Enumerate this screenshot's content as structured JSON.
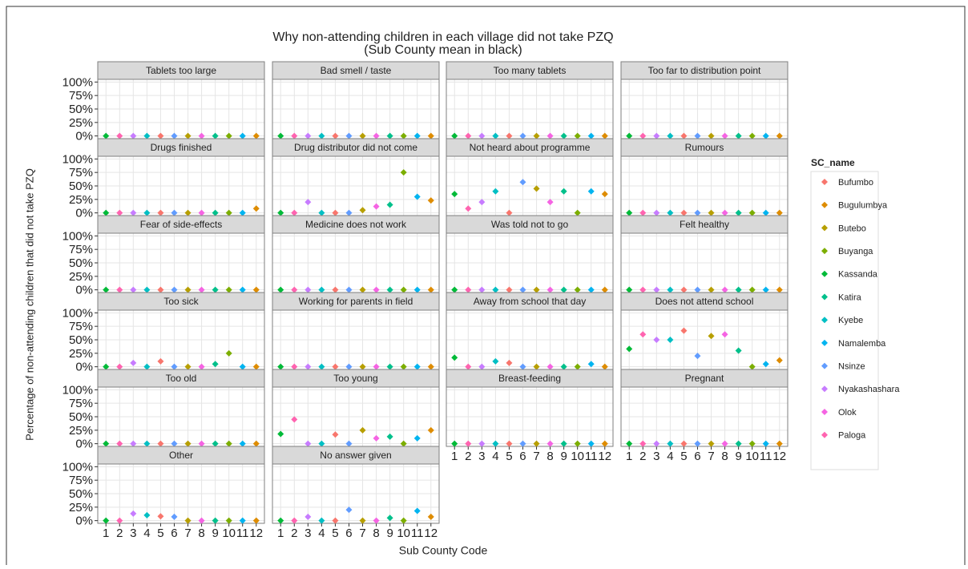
{
  "chart_data": {
    "type": "scatter",
    "title": "Why non-attending children in each village did not take PZQ",
    "subtitle": "(Sub County mean in black)",
    "x_label": "Sub County Code",
    "y_label": "Percentage of non-attending children that did not take PZQ",
    "legend_title": "SC_name",
    "grid": true,
    "x": [
      1,
      2,
      3,
      4,
      5,
      6,
      7,
      8,
      9,
      10,
      11,
      12
    ],
    "xlim": [
      0.4,
      12.6
    ],
    "ylim": [
      -5,
      105
    ],
    "yticks": [
      {
        "value": 0,
        "label": "0%"
      },
      {
        "value": 25,
        "label": "25%"
      },
      {
        "value": 50,
        "label": "50%"
      },
      {
        "value": 75,
        "label": "75%"
      },
      {
        "value": 100,
        "label": "100%"
      }
    ],
    "series": [
      {
        "name": "Bufumbo",
        "color": "#f8766d",
        "x": 5
      },
      {
        "name": "Bugulumbya",
        "color": "#de8c00",
        "x": 12
      },
      {
        "name": "Butebo",
        "color": "#b79f00",
        "x": 7
      },
      {
        "name": "Buyanga",
        "color": "#7cae00",
        "x": 10
      },
      {
        "name": "Kassanda",
        "color": "#00ba38",
        "x": 1
      },
      {
        "name": "Katira",
        "color": "#00c08b",
        "x": 9
      },
      {
        "name": "Kyebe",
        "color": "#00bfc4",
        "x": 4
      },
      {
        "name": "Namalemba",
        "color": "#00b4f0",
        "x": 11
      },
      {
        "name": "Nsinze",
        "color": "#619cff",
        "x": 6
      },
      {
        "name": "Nyakashashara",
        "color": "#c77cff",
        "x": 3
      },
      {
        "name": "Olok",
        "color": "#f564e3",
        "x": 8
      },
      {
        "name": "Paloga",
        "color": "#ff64b0",
        "x": 2
      }
    ],
    "facets": [
      {
        "title": "Tablets too large",
        "values": [
          0,
          0,
          0,
          0,
          0,
          0,
          0,
          0,
          0,
          0,
          0,
          0
        ]
      },
      {
        "title": "Bad smell / taste",
        "values": [
          0,
          0,
          0,
          0,
          0,
          0,
          0,
          0,
          0,
          0,
          0,
          0
        ]
      },
      {
        "title": "Too many tablets",
        "values": [
          0,
          0,
          0,
          0,
          0,
          0,
          0,
          0,
          0,
          0,
          0,
          0
        ]
      },
      {
        "title": "Too far to distribution point",
        "values": [
          0,
          0,
          0,
          0,
          0,
          0,
          0,
          0,
          0,
          0,
          0,
          0
        ]
      },
      {
        "title": "Drugs finished",
        "values": [
          0,
          0,
          0,
          0,
          0,
          0,
          0,
          0,
          0,
          0,
          0,
          8
        ]
      },
      {
        "title": "Drug distributor did not come",
        "values": [
          0,
          0,
          20,
          0,
          0,
          0,
          5,
          12,
          15,
          75,
          30,
          23
        ]
      },
      {
        "title": "Not heard about programme",
        "values": [
          35,
          8,
          20,
          40,
          0,
          57,
          45,
          20,
          40,
          0,
          40,
          35
        ]
      },
      {
        "title": "Rumours",
        "values": [
          0,
          0,
          0,
          0,
          0,
          0,
          0,
          0,
          0,
          0,
          0,
          0
        ]
      },
      {
        "title": "Fear of side-effects",
        "values": [
          0,
          0,
          0,
          0,
          0,
          0,
          0,
          0,
          0,
          0,
          0,
          0
        ]
      },
      {
        "title": "Medicine does not work",
        "values": [
          0,
          0,
          0,
          0,
          0,
          0,
          0,
          0,
          0,
          0,
          0,
          0
        ]
      },
      {
        "title": "Was told not to go",
        "values": [
          0,
          0,
          0,
          0,
          0,
          0,
          0,
          0,
          0,
          0,
          0,
          0
        ]
      },
      {
        "title": "Felt healthy",
        "values": [
          0,
          0,
          0,
          0,
          0,
          0,
          0,
          0,
          0,
          0,
          0,
          0
        ]
      },
      {
        "title": "Too sick",
        "values": [
          0,
          0,
          7,
          0,
          10,
          0,
          0,
          0,
          5,
          25,
          0,
          0
        ]
      },
      {
        "title": "Working for parents in field",
        "values": [
          0,
          0,
          0,
          0,
          0,
          0,
          0,
          0,
          0,
          0,
          0,
          0
        ]
      },
      {
        "title": "Away from school that day",
        "values": [
          17,
          0,
          0,
          10,
          7,
          0,
          0,
          0,
          0,
          0,
          5,
          0
        ]
      },
      {
        "title": "Does not attend school",
        "values": [
          33,
          60,
          50,
          50,
          67,
          20,
          57,
          60,
          30,
          0,
          5,
          12
        ]
      },
      {
        "title": "Too old",
        "values": [
          0,
          0,
          0,
          0,
          0,
          0,
          0,
          0,
          0,
          0,
          0,
          0
        ]
      },
      {
        "title": "Too young",
        "values": [
          18,
          45,
          0,
          0,
          17,
          0,
          25,
          10,
          13,
          0,
          10,
          25
        ]
      },
      {
        "title": "Breast-feeding",
        "values": [
          0,
          0,
          0,
          0,
          0,
          0,
          0,
          0,
          0,
          0,
          0,
          0
        ]
      },
      {
        "title": "Pregnant",
        "values": [
          0,
          0,
          0,
          0,
          0,
          0,
          0,
          0,
          0,
          0,
          0,
          0
        ]
      },
      {
        "title": "Other",
        "values": [
          0,
          0,
          13,
          10,
          8,
          7,
          0,
          0,
          0,
          0,
          0,
          0
        ]
      },
      {
        "title": "No answer given",
        "values": [
          0,
          0,
          7,
          0,
          0,
          20,
          0,
          0,
          5,
          0,
          18,
          7
        ]
      }
    ]
  }
}
